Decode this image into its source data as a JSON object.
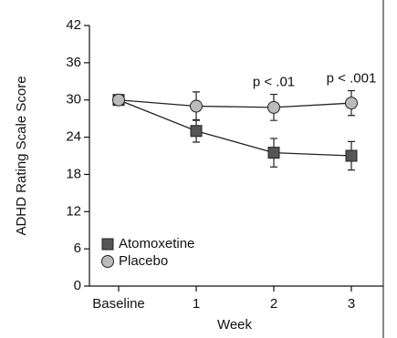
{
  "chart_data": {
    "type": "line",
    "x_label": "Week",
    "y_label": "ADHD Rating Scale Score",
    "categories": [
      "Baseline",
      "1",
      "2",
      "3"
    ],
    "series": [
      {
        "name": "Atomoxetine",
        "color": "#555555",
        "marker": "square",
        "values": [
          30,
          25,
          21.5,
          21
        ],
        "errors": [
          0,
          1.8,
          2.3,
          2.3
        ]
      },
      {
        "name": "Placebo",
        "color": "#bbbbbb",
        "marker": "circle",
        "values": [
          30,
          29,
          28.8,
          29.5
        ],
        "errors": [
          0,
          2.3,
          2.1,
          2.0
        ]
      }
    ],
    "annotations": [
      {
        "text": "p < .01",
        "category": 2
      },
      {
        "text": "p < .001",
        "category": 3
      }
    ],
    "ylim": [
      0,
      42
    ],
    "yticks": [
      0,
      6,
      12,
      18,
      24,
      30,
      36,
      42
    ],
    "legend": "lower left",
    "grid": false
  }
}
